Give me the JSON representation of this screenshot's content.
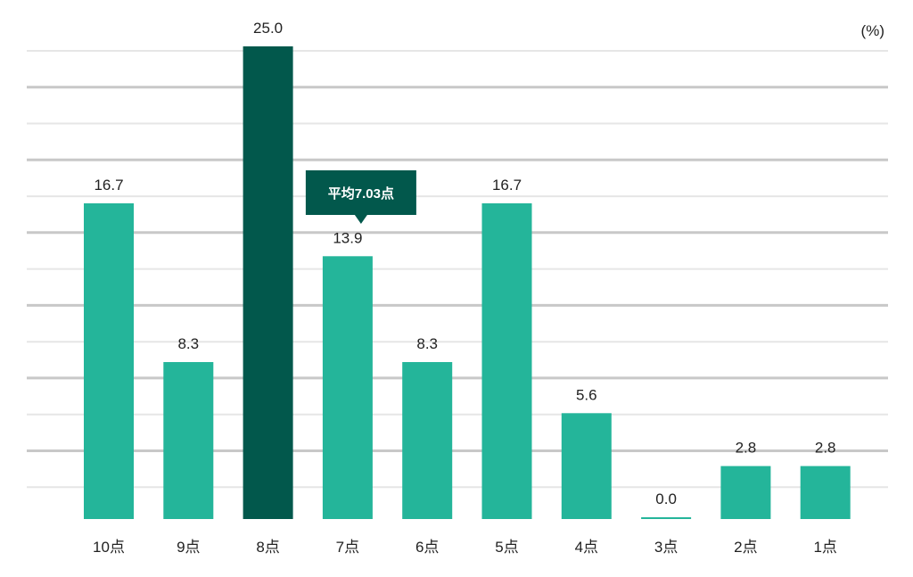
{
  "chart_data": {
    "type": "bar",
    "unit": "(%)",
    "categories": [
      "10点",
      "9点",
      "8点",
      "7点",
      "6点",
      "5点",
      "4点",
      "3点",
      "2点",
      "1点"
    ],
    "values": [
      16.7,
      8.3,
      25.0,
      13.9,
      8.3,
      16.7,
      5.6,
      0.0,
      2.8,
      2.8
    ],
    "value_labels": [
      "16.7",
      "8.3",
      "25.0",
      "13.9",
      "8.3",
      "16.7",
      "5.6",
      "0.0",
      "2.8",
      "2.8"
    ],
    "highlight_index": 2,
    "ylim": [
      0,
      25
    ],
    "grid": true,
    "annotation": {
      "text": "平均7.03点",
      "category": "7点"
    },
    "colors": {
      "bar": "#24b59a",
      "highlight": "#02584c",
      "callout": "#02584c",
      "grid_major": "#c8c8c8",
      "grid_minor": "#e6e6e6"
    }
  }
}
